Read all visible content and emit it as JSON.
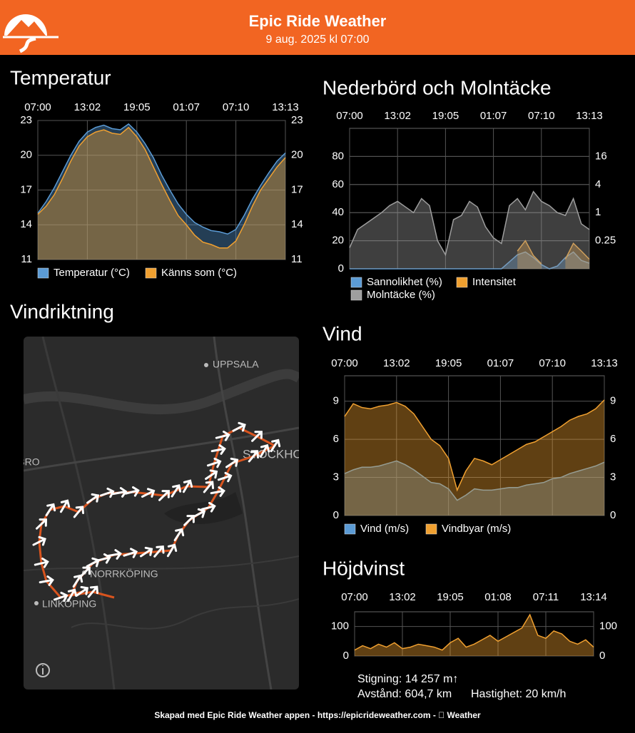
{
  "header": {
    "title": "Epic Ride Weather",
    "subtitle": "9 aug. 2025 kl 07:00"
  },
  "chart_data": [
    {
      "type": "area",
      "title": "Temperatur",
      "categories": [
        "07:00",
        null,
        null,
        null,
        null,
        null,
        "13:02",
        null,
        null,
        null,
        null,
        null,
        "19:05",
        null,
        null,
        null,
        null,
        null,
        "01:07",
        null,
        null,
        null,
        null,
        null,
        "07:10",
        null,
        null,
        null,
        null,
        null,
        "13:13"
      ],
      "series": [
        {
          "name": "Temperatur (°C)",
          "color": "#5b9bd5",
          "values": [
            15.0,
            16.0,
            17.2,
            18.6,
            20.0,
            21.2,
            22.0,
            22.4,
            22.6,
            22.3,
            22.2,
            22.7,
            22.0,
            21.0,
            19.8,
            18.3,
            17.0,
            15.8,
            14.9,
            14.2,
            13.8,
            13.5,
            13.4,
            13.2,
            13.6,
            14.8,
            16.2,
            17.4,
            18.5,
            19.5,
            20.2
          ]
        },
        {
          "name": "Känns som (°C)",
          "color": "#f0a030",
          "values": [
            14.9,
            15.6,
            16.6,
            18.0,
            19.5,
            20.8,
            21.6,
            22.0,
            22.2,
            21.9,
            21.8,
            22.4,
            21.6,
            20.5,
            19.0,
            17.5,
            16.1,
            14.8,
            14.0,
            13.1,
            12.5,
            12.3,
            12.0,
            12.0,
            12.6,
            14.0,
            15.6,
            17.0,
            18.0,
            19.0,
            19.8
          ]
        }
      ],
      "ylim": [
        11,
        23
      ],
      "yticks": [
        11,
        14,
        17,
        20,
        23
      ],
      "y2lim": [
        11,
        23
      ],
      "y2ticks": [
        11,
        14,
        17,
        20,
        23
      ],
      "grid": true,
      "legend": "bottom"
    },
    {
      "type": "area",
      "title": "Nederbörd och Molntäcke",
      "categories": [
        "07:00",
        null,
        null,
        null,
        null,
        null,
        "13:02",
        null,
        null,
        null,
        null,
        null,
        "19:05",
        null,
        null,
        null,
        null,
        null,
        "01:07",
        null,
        null,
        null,
        null,
        null,
        "07:10",
        null,
        null,
        null,
        null,
        null,
        "13:13"
      ],
      "series": [
        {
          "name": "Sannolikhet (%)",
          "color": "#5b9bd5",
          "values": [
            0,
            0,
            0,
            0,
            0,
            0,
            0,
            0,
            0,
            0,
            0,
            0,
            0,
            0,
            0,
            0,
            0,
            0,
            0,
            0,
            5,
            10,
            12,
            8,
            3,
            0,
            2,
            8,
            12,
            6,
            4
          ]
        },
        {
          "name": "Intensitet",
          "color": "#f0a030",
          "axis": "y2",
          "values": [
            null,
            null,
            null,
            null,
            null,
            null,
            null,
            null,
            null,
            null,
            null,
            null,
            null,
            null,
            null,
            null,
            null,
            null,
            null,
            null,
            null,
            0.15,
            0.25,
            0.12,
            0.08,
            null,
            null,
            0.1,
            0.22,
            0.15,
            0.1
          ]
        },
        {
          "name": "Molntäcke (%)",
          "color": "#9e9e9e",
          "values": [
            15,
            28,
            32,
            36,
            40,
            45,
            48,
            44,
            40,
            50,
            45,
            20,
            10,
            35,
            38,
            48,
            44,
            30,
            22,
            18,
            45,
            50,
            42,
            55,
            48,
            45,
            40,
            38,
            50,
            32,
            28
          ]
        }
      ],
      "ylim": [
        0,
        100
      ],
      "yticks": [
        0,
        20,
        40,
        60,
        80
      ],
      "y2lim": [
        0.0625,
        64
      ],
      "y2ticks": [
        0.25,
        1,
        4,
        16
      ],
      "y2scale": "log",
      "grid": true,
      "legend": "bottom"
    },
    {
      "type": "area",
      "title": "Vind",
      "categories": [
        "07:00",
        null,
        null,
        null,
        null,
        null,
        "13:02",
        null,
        null,
        null,
        null,
        null,
        "19:05",
        null,
        null,
        null,
        null,
        null,
        "01:07",
        null,
        null,
        null,
        null,
        null,
        "07:10",
        null,
        null,
        null,
        null,
        null,
        "13:13"
      ],
      "series": [
        {
          "name": "Vind (m/s)",
          "color": "#5b9bd5",
          "values": [
            3.3,
            3.6,
            3.8,
            3.8,
            3.9,
            4.1,
            4.3,
            4.0,
            3.6,
            3.1,
            2.6,
            2.5,
            2.1,
            1.2,
            1.6,
            2.1,
            2.0,
            2.0,
            2.1,
            2.2,
            2.2,
            2.4,
            2.5,
            2.6,
            2.9,
            3.0,
            3.3,
            3.5,
            3.7,
            3.9,
            4.2
          ]
        },
        {
          "name": "Vindbyar (m/s)",
          "color": "#f0a030",
          "values": [
            7.8,
            8.8,
            8.5,
            8.4,
            8.6,
            8.7,
            8.9,
            8.6,
            8.0,
            7.0,
            6.0,
            5.5,
            4.5,
            2.0,
            3.5,
            4.5,
            4.3,
            4.0,
            4.4,
            4.8,
            5.2,
            5.6,
            5.8,
            6.2,
            6.6,
            7.0,
            7.5,
            7.8,
            8.0,
            8.4,
            9.1
          ]
        }
      ],
      "ylim": [
        0,
        11
      ],
      "yticks": [
        0,
        3,
        6,
        9
      ],
      "y2lim": [
        0,
        11
      ],
      "y2ticks": [
        0,
        3,
        6,
        9
      ],
      "grid": true,
      "legend": "bottom"
    },
    {
      "type": "area",
      "title": "Höjdvinst",
      "categories": [
        "07:00",
        null,
        null,
        null,
        null,
        null,
        "13:02",
        null,
        null,
        null,
        null,
        null,
        "19:05",
        null,
        null,
        null,
        null,
        null,
        "01:08",
        null,
        null,
        null,
        null,
        null,
        "07:11",
        null,
        null,
        null,
        null,
        null,
        "13:14"
      ],
      "color": "#f0a030",
      "values": [
        20,
        35,
        25,
        40,
        30,
        45,
        25,
        30,
        40,
        35,
        30,
        20,
        45,
        60,
        30,
        40,
        55,
        70,
        50,
        65,
        80,
        95,
        140,
        70,
        60,
        85,
        75,
        50,
        40,
        55,
        30
      ],
      "ylim": [
        0,
        150
      ],
      "yticks": [
        0,
        100
      ],
      "y2lim": [
        0,
        150
      ],
      "y2ticks": [
        0,
        100
      ],
      "grid": true
    }
  ],
  "map": {
    "title": "Vindriktning",
    "labels": [
      "UPPSALA",
      "ÖREBRO",
      "STOCKHOLM",
      "NORRKÖPING",
      "LINKÖPING"
    ]
  },
  "stats": {
    "climb": "Stigning: 14 257 m↑",
    "distance": "Avstånd: 604,7 km",
    "speed": "Hastighet: 20 km/h"
  },
  "footer": "Skapad med Epic Ride Weather appen - https://epicrideweather.com -  Weather"
}
